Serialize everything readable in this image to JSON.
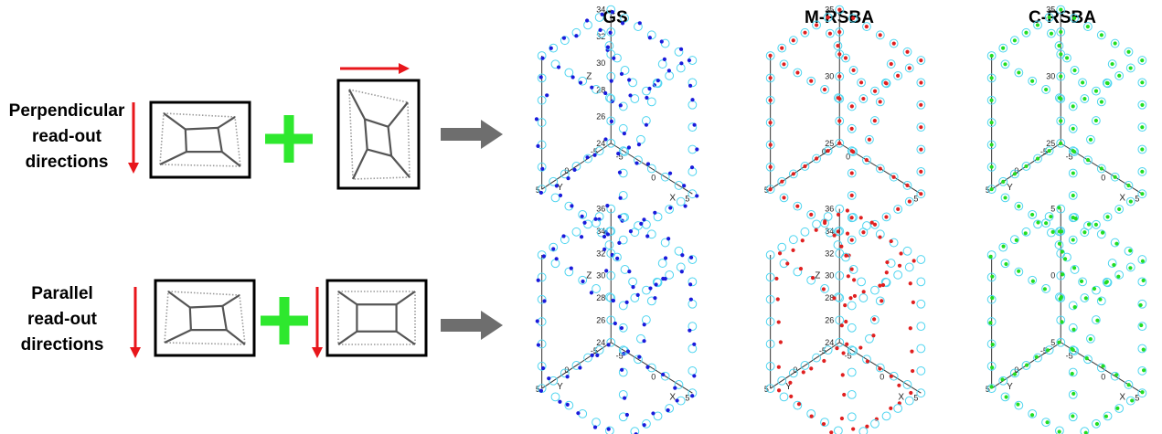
{
  "columns": [
    {
      "label": "GS",
      "color": "#1a1adb"
    },
    {
      "label": "M-RSBA",
      "color": "#e02020"
    },
    {
      "label": "C-RSBA",
      "color": "#22dd22"
    }
  ],
  "rows": [
    {
      "label_lines": [
        "Perpendicular",
        "read-out",
        "directions"
      ],
      "readout_arrows": [
        "vertical-down",
        "horizontal-right"
      ],
      "plots": [
        {
          "z_ticks": [
            "24",
            "26",
            "28",
            "30",
            "32",
            "34"
          ],
          "x_ticks": [
            "-5",
            "0",
            "5"
          ],
          "y_ticks": [
            "5",
            "0",
            "-5"
          ],
          "z_label": "Z",
          "x_label": "X",
          "y_label": "Y"
        },
        {
          "z_ticks": [
            "25",
            "30",
            "35"
          ],
          "x_ticks": [
            "0",
            "5"
          ],
          "y_ticks": [
            "5",
            "0"
          ],
          "z_label": "",
          "x_label": "",
          "y_label": ""
        },
        {
          "z_ticks": [
            "25",
            "30",
            "35"
          ],
          "x_ticks": [
            "-5",
            "0",
            "5"
          ],
          "y_ticks": [
            "5",
            "0",
            "-5"
          ],
          "z_label": "",
          "x_label": "X",
          "y_label": "Y"
        }
      ]
    },
    {
      "label_lines": [
        "Parallel",
        "read-out",
        "directions"
      ],
      "readout_arrows": [
        "vertical-down",
        "vertical-down"
      ],
      "plots": [
        {
          "z_ticks": [
            "24",
            "26",
            "28",
            "30",
            "32",
            "34",
            "36"
          ],
          "x_ticks": [
            "-5",
            "0",
            "5"
          ],
          "y_ticks": [
            "5",
            "0",
            "-5"
          ],
          "z_label": "Z",
          "x_label": "X",
          "y_label": "Y"
        },
        {
          "z_ticks": [
            "24",
            "26",
            "28",
            "30",
            "32",
            "34",
            "36"
          ],
          "x_ticks": [
            "-5",
            "0",
            "5"
          ],
          "y_ticks": [
            "5",
            "0",
            "-5"
          ],
          "z_label": "Z",
          "x_label": "X",
          "y_label": "Y"
        },
        {
          "z_ticks": [
            "5",
            "0",
            "5"
          ],
          "x_ticks": [
            "-5",
            "0",
            "5"
          ],
          "y_ticks": [
            "5",
            "0",
            "-5"
          ],
          "z_label": "",
          "x_label": "X",
          "y_label": "Y"
        }
      ]
    }
  ],
  "colors": {
    "readout_arrow": "#e8161b",
    "plus_sign": "#2ee82e",
    "process_arrow": "#6e6e6e",
    "reference_circle": "#4fd5f0",
    "frame": "#000000",
    "cube_sketch": "#7a7a7a"
  },
  "icons": {
    "readout_arrow": "red-arrow-icon",
    "plus": "plus-icon",
    "process": "gray-arrow-icon"
  }
}
